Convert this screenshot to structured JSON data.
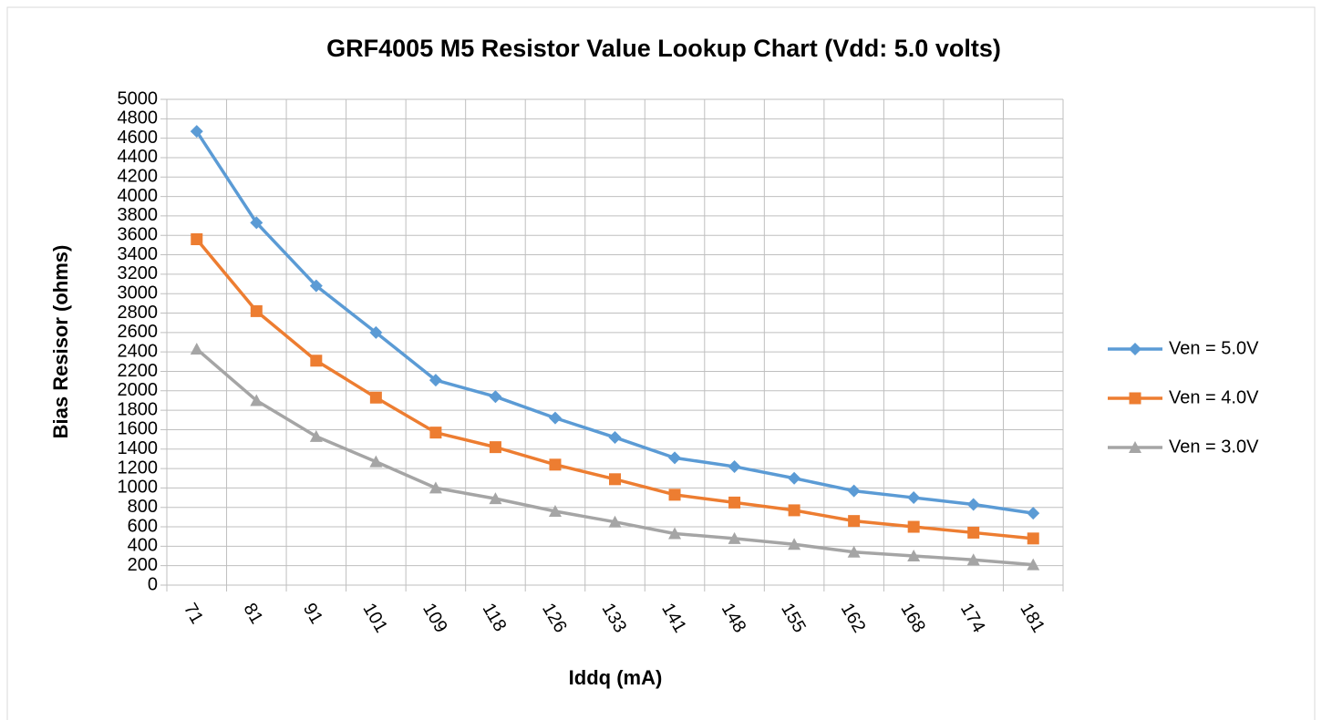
{
  "chart_data": {
    "type": "line",
    "title": "GRF4005 M5 Resistor Value Lookup Chart (Vdd: 5.0 volts)",
    "x_label": "Iddq (mA)",
    "y_label": "Bias Resisor (ohms)",
    "categories": [
      "71",
      "81",
      "91",
      "101",
      "109",
      "118",
      "126",
      "133",
      "141",
      "148",
      "155",
      "162",
      "168",
      "174",
      "181"
    ],
    "series": [
      {
        "name": "Ven = 5.0V",
        "color": "#5b9bd5",
        "marker": "diamond",
        "values": [
          4670,
          3730,
          3080,
          2600,
          2110,
          1940,
          1720,
          1520,
          1310,
          1220,
          1100,
          970,
          900,
          830,
          740
        ]
      },
      {
        "name": "Ven = 4.0V",
        "color": "#ed7d31",
        "marker": "square",
        "values": [
          3560,
          2820,
          2310,
          1930,
          1570,
          1420,
          1240,
          1090,
          930,
          850,
          770,
          660,
          600,
          540,
          480
        ]
      },
      {
        "name": "Ven = 3.0V",
        "color": "#a5a5a5",
        "marker": "triangle",
        "values": [
          2430,
          1900,
          1530,
          1270,
          1000,
          890,
          760,
          650,
          530,
          480,
          420,
          340,
          300,
          260,
          210
        ]
      }
    ],
    "ylim": [
      0,
      5000
    ],
    "yticks": [
      0,
      200,
      400,
      600,
      800,
      1000,
      1200,
      1400,
      1600,
      1800,
      2000,
      2200,
      2400,
      2600,
      2800,
      3000,
      3200,
      3400,
      3600,
      3800,
      4000,
      4200,
      4400,
      4600,
      4800,
      5000
    ],
    "grid": true,
    "legend": "right"
  }
}
